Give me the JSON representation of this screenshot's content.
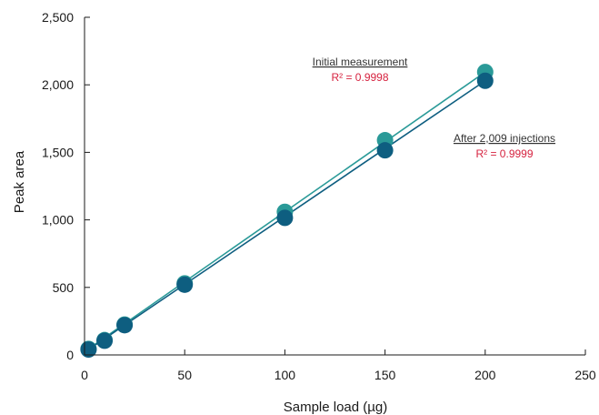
{
  "chart_data": {
    "type": "scatter",
    "xlabel": "Sample  load (µg)",
    "ylabel": "Peak area",
    "xlim": [
      0,
      250
    ],
    "ylim": [
      0,
      2500
    ],
    "x_ticks": [
      0,
      50,
      100,
      150,
      200,
      250
    ],
    "y_ticks": [
      0,
      500,
      1000,
      1500,
      2000,
      2500
    ],
    "x_tick_labels": [
      "0",
      "50",
      "100",
      "150",
      "200",
      "250"
    ],
    "y_tick_labels": [
      "0",
      "500",
      "1,000",
      "1,500",
      "2,000",
      "2,500"
    ],
    "grid": false,
    "series": [
      {
        "id": "initial",
        "color": "#2a9a98",
        "x": [
          2,
          10,
          20,
          50,
          100,
          150,
          200
        ],
        "y": [
          45,
          110,
          225,
          530,
          1060,
          1590,
          2095
        ],
        "fit": [
          [
            2,
            45
          ],
          [
            200,
            2095
          ]
        ]
      },
      {
        "id": "after",
        "color": "#0e5e80",
        "x": [
          2,
          10,
          20,
          50,
          100,
          150,
          200
        ],
        "y": [
          40,
          105,
          220,
          520,
          1015,
          1515,
          2030
        ],
        "fit": [
          [
            2,
            40
          ],
          [
            200,
            2030
          ]
        ]
      }
    ],
    "annotations": [
      {
        "title": "Initial measurement",
        "r2": "R² = 0.9998",
        "r2_color": "#d6223f"
      },
      {
        "title": "After 2,009 injections",
        "r2": "R² = 0.9999",
        "r2_color": "#d6223f"
      }
    ]
  }
}
